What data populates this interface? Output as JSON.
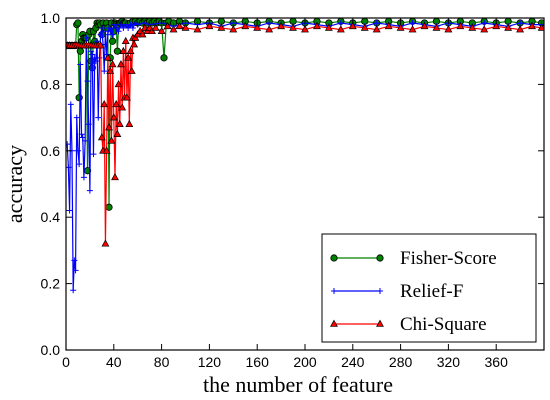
{
  "chart_data": {
    "type": "line",
    "title": "",
    "xlabel": "the number of feature",
    "ylabel": "accuracy",
    "xlim": [
      0,
      400
    ],
    "ylim": [
      0.0,
      1.0
    ],
    "xticks": [
      0,
      40,
      80,
      120,
      160,
      200,
      240,
      280,
      320,
      360
    ],
    "xtick_labels": [
      "0",
      "40",
      "80",
      "120",
      "160",
      "200",
      "240",
      "280",
      "320",
      "360"
    ],
    "yticks": [
      0.0,
      0.2,
      0.4,
      0.6,
      0.8,
      1.0
    ],
    "ytick_labels": [
      "0.0",
      "0.2",
      "0.4",
      "0.6",
      "0.8",
      "1.0"
    ],
    "grid": false,
    "legend_position": "lower-right",
    "series": [
      {
        "name": "Fisher-Score",
        "color": "#008000",
        "marker": "circle",
        "x": [
          1,
          2,
          3,
          4,
          5,
          6,
          7,
          8,
          9,
          10,
          11,
          12,
          13,
          14,
          15,
          16,
          17,
          18,
          19,
          20,
          21,
          22,
          23,
          24,
          25,
          26,
          27,
          28,
          29,
          30,
          31,
          32,
          33,
          34,
          35,
          36,
          37,
          38,
          39,
          40,
          41,
          42,
          43,
          44,
          45,
          46,
          47,
          48,
          49,
          50,
          52,
          54,
          56,
          58,
          60,
          62,
          64,
          66,
          68,
          70,
          72,
          74,
          76,
          78,
          80,
          82,
          84,
          86,
          90,
          95,
          100,
          110,
          120,
          130,
          140,
          150,
          160,
          170,
          180,
          190,
          200,
          210,
          220,
          230,
          240,
          250,
          260,
          270,
          280,
          290,
          300,
          310,
          320,
          330,
          340,
          350,
          360,
          370,
          380,
          390,
          398
        ],
        "y": [
          0.917,
          0.917,
          0.917,
          0.917,
          0.917,
          0.917,
          0.917,
          0.917,
          0.98,
          0.985,
          0.76,
          0.9,
          0.93,
          0.95,
          0.94,
          0.94,
          0.94,
          0.54,
          0.95,
          0.96,
          0.87,
          0.85,
          0.96,
          0.93,
          0.97,
          0.985,
          0.98,
          0.985,
          0.98,
          0.95,
          0.985,
          0.97,
          0.97,
          0.985,
          0.97,
          0.43,
          0.88,
          0.985,
          0.93,
          0.96,
          0.985,
          0.98,
          0.9,
          0.98,
          0.985,
          0.985,
          0.99,
          0.985,
          0.985,
          0.985,
          0.98,
          0.985,
          0.99,
          0.99,
          0.985,
          0.99,
          0.985,
          0.99,
          0.985,
          0.99,
          0.985,
          0.99,
          0.985,
          0.99,
          0.985,
          0.88,
          0.985,
          0.99,
          0.985,
          0.99,
          0.985,
          0.99,
          0.985,
          0.99,
          0.985,
          0.99,
          0.985,
          0.99,
          0.985,
          0.99,
          0.985,
          0.99,
          0.985,
          0.99,
          0.985,
          0.99,
          0.985,
          0.99,
          0.985,
          0.99,
          0.985,
          0.99,
          0.985,
          0.99,
          0.985,
          0.99,
          0.985,
          0.99,
          0.985,
          0.99,
          0.985
        ]
      },
      {
        "name": "Relief-F",
        "color": "#0000ff",
        "marker": "plus",
        "x": [
          1,
          2,
          3,
          4,
          5,
          6,
          7,
          8,
          9,
          10,
          11,
          12,
          13,
          14,
          15,
          16,
          17,
          18,
          19,
          20,
          21,
          22,
          23,
          24,
          25,
          26,
          27,
          28,
          29,
          30,
          31,
          32,
          33,
          34,
          35,
          36,
          37,
          38,
          39,
          40,
          42,
          44,
          46,
          48,
          50,
          52,
          54,
          56,
          58,
          60,
          65,
          70,
          80,
          90,
          100,
          110,
          120,
          130,
          140,
          150,
          160,
          170,
          180,
          190,
          200,
          210,
          220,
          230,
          240,
          250,
          260,
          270,
          280,
          290,
          300,
          310,
          320,
          330,
          340,
          350,
          360,
          370,
          380,
          390,
          398
        ],
        "y": [
          0.62,
          0.55,
          0.42,
          0.74,
          0.6,
          0.18,
          0.27,
          0.24,
          0.7,
          0.6,
          0.56,
          0.86,
          0.65,
          0.64,
          0.52,
          0.63,
          0.94,
          0.81,
          0.68,
          0.48,
          0.9,
          0.89,
          0.59,
          0.88,
          0.87,
          0.93,
          0.7,
          0.88,
          0.95,
          0.97,
          0.92,
          0.84,
          0.96,
          0.89,
          0.95,
          0.97,
          0.96,
          0.97,
          0.95,
          0.98,
          0.97,
          0.96,
          0.98,
          0.97,
          0.98,
          0.97,
          0.98,
          0.97,
          0.985,
          0.98,
          0.985,
          0.98,
          0.985,
          0.975,
          0.985,
          0.98,
          0.985,
          0.975,
          0.985,
          0.98,
          0.975,
          0.985,
          0.98,
          0.975,
          0.985,
          0.98,
          0.975,
          0.985,
          0.98,
          0.975,
          0.985,
          0.98,
          0.975,
          0.985,
          0.98,
          0.975,
          0.985,
          0.98,
          0.975,
          0.985,
          0.98,
          0.975,
          0.985,
          0.98,
          0.98
        ]
      },
      {
        "name": "Chi-Square",
        "color": "#ff0000",
        "marker": "triangle",
        "x": [
          1,
          3,
          5,
          7,
          9,
          11,
          13,
          15,
          17,
          19,
          21,
          23,
          25,
          27,
          29,
          30,
          31,
          32,
          33,
          34,
          35,
          36,
          37,
          38,
          39,
          40,
          41,
          42,
          43,
          44,
          45,
          46,
          47,
          48,
          49,
          50,
          51,
          52,
          53,
          54,
          55,
          56,
          57,
          58,
          60,
          62,
          64,
          66,
          68,
          70,
          72,
          75,
          80,
          85,
          90,
          95,
          100,
          110,
          120,
          130,
          140,
          150,
          160,
          170,
          180,
          190,
          200,
          210,
          220,
          230,
          240,
          250,
          260,
          270,
          280,
          290,
          300,
          310,
          320,
          330,
          340,
          350,
          360,
          370,
          380,
          390,
          398
        ],
        "y": [
          0.917,
          0.917,
          0.917,
          0.917,
          0.917,
          0.917,
          0.917,
          0.917,
          0.917,
          0.917,
          0.917,
          0.917,
          0.917,
          0.917,
          0.917,
          0.64,
          0.6,
          0.74,
          0.32,
          0.6,
          0.88,
          0.67,
          0.84,
          0.63,
          0.86,
          0.7,
          0.52,
          0.74,
          0.65,
          0.8,
          0.68,
          0.86,
          0.73,
          0.9,
          0.76,
          0.93,
          0.76,
          0.88,
          0.68,
          0.9,
          0.84,
          0.94,
          0.92,
          0.94,
          0.95,
          0.96,
          0.95,
          0.97,
          0.96,
          0.97,
          0.96,
          0.97,
          0.96,
          0.975,
          0.965,
          0.975,
          0.97,
          0.965,
          0.975,
          0.97,
          0.965,
          0.975,
          0.97,
          0.965,
          0.975,
          0.97,
          0.965,
          0.975,
          0.97,
          0.965,
          0.975,
          0.97,
          0.965,
          0.975,
          0.97,
          0.965,
          0.975,
          0.97,
          0.965,
          0.975,
          0.97,
          0.965,
          0.975,
          0.97,
          0.965,
          0.975,
          0.97
        ]
      }
    ]
  }
}
